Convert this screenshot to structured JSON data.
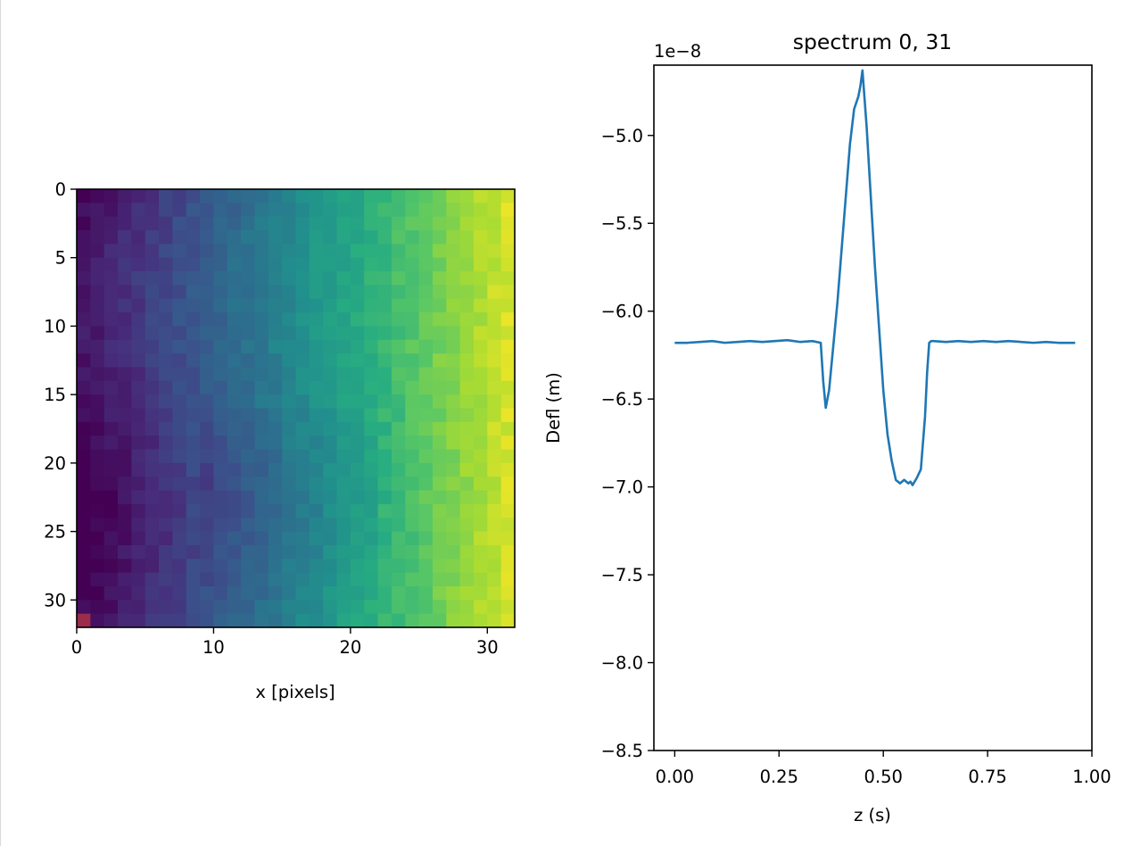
{
  "chart_data": [
    {
      "type": "heatmap",
      "title": "",
      "xlabel": "x [pixels]",
      "ylabel": "",
      "xlim": [
        0,
        32
      ],
      "ylim": [
        32,
        0
      ],
      "grid": false,
      "colormap": "viridis",
      "rows": 32,
      "cols": 32,
      "x_ticks": [
        "0",
        "10",
        "20",
        "30"
      ],
      "y_ticks": [
        "0",
        "5",
        "10",
        "15",
        "20",
        "25",
        "30"
      ],
      "selected_pixel": {
        "x": 0,
        "y": 31,
        "color": "#9b2c4a"
      },
      "value_range": [
        0,
        1
      ]
    },
    {
      "type": "line",
      "title": "spectrum 0, 31",
      "xlabel": "z (s)",
      "ylabel": "Defl (m)",
      "offset_text": "1e−8",
      "xlim": [
        -0.05,
        1.0
      ],
      "ylim": [
        -8.5,
        -4.6
      ],
      "grid": false,
      "x_ticks": [
        "0.00",
        "0.25",
        "0.50",
        "0.75",
        "1.00"
      ],
      "y_ticks": [
        "−5.0",
        "−5.5",
        "−6.0",
        "−6.5",
        "−7.0",
        "−7.5",
        "−8.0",
        "−8.5"
      ],
      "series": [
        {
          "color": "#1f77b4",
          "x": [
            0.0,
            0.03,
            0.06,
            0.09,
            0.12,
            0.15,
            0.18,
            0.21,
            0.24,
            0.27,
            0.3,
            0.33,
            0.35,
            0.356,
            0.362,
            0.37,
            0.38,
            0.39,
            0.4,
            0.41,
            0.42,
            0.43,
            0.44,
            0.445,
            0.45,
            0.46,
            0.47,
            0.48,
            0.49,
            0.5,
            0.51,
            0.52,
            0.53,
            0.54,
            0.55,
            0.56,
            0.565,
            0.57,
            0.58,
            0.59,
            0.6,
            0.605,
            0.61,
            0.615,
            0.62,
            0.65,
            0.68,
            0.71,
            0.74,
            0.77,
            0.8,
            0.83,
            0.86,
            0.89,
            0.92,
            0.94,
            0.96
          ],
          "y": [
            -6.18,
            -6.18,
            -6.175,
            -6.17,
            -6.18,
            -6.175,
            -6.17,
            -6.175,
            -6.17,
            -6.165,
            -6.175,
            -6.17,
            -6.18,
            -6.4,
            -6.55,
            -6.45,
            -6.2,
            -5.95,
            -5.65,
            -5.35,
            -5.05,
            -4.85,
            -4.78,
            -4.72,
            -4.63,
            -4.95,
            -5.35,
            -5.75,
            -6.1,
            -6.45,
            -6.7,
            -6.85,
            -6.96,
            -6.98,
            -6.96,
            -6.98,
            -6.97,
            -6.99,
            -6.95,
            -6.9,
            -6.6,
            -6.35,
            -6.18,
            -6.17,
            -6.17,
            -6.175,
            -6.17,
            -6.175,
            -6.17,
            -6.175,
            -6.17,
            -6.175,
            -6.18,
            -6.175,
            -6.18,
            -6.18,
            -6.18
          ]
        }
      ]
    }
  ]
}
